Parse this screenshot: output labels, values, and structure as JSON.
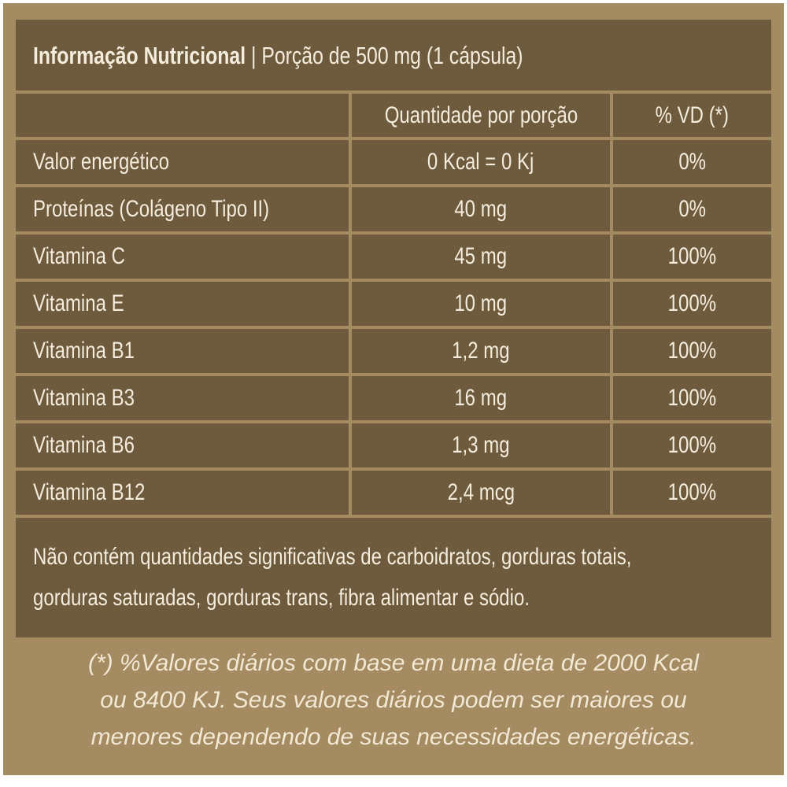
{
  "title": {
    "bold": "Informação Nutricional",
    "separator": " | ",
    "serving": "Porção de 500 mg (1 cápsula)"
  },
  "table": {
    "headers": [
      "",
      "Quantidade por porção",
      "% VD (*)"
    ],
    "rows": [
      [
        "Valor energético",
        "0 Kcal = 0 Kj",
        "0%"
      ],
      [
        "Proteínas (Colágeno Tipo II)",
        "40 mg",
        "0%"
      ],
      [
        "Vitamina C",
        "45 mg",
        "100%"
      ],
      [
        "Vitamina E",
        "10 mg",
        "100%"
      ],
      [
        "Vitamina B1",
        "1,2 mg",
        "100%"
      ],
      [
        "Vitamina B3",
        "16 mg",
        "100%"
      ],
      [
        "Vitamina B6",
        "1,3 mg",
        "100%"
      ],
      [
        "Vitamina B12",
        "2,4 mcg",
        "100%"
      ]
    ]
  },
  "note": [
    "Não contém quantidades significativas de carboidratos, gorduras totais,",
    "gorduras saturadas, gorduras trans, fibra alimentar e sódio."
  ],
  "footer": [
    "(*) %Valores diários com base em uma dieta de 2000 Kcal",
    "ou 8400 KJ. Seus valores diários podem ser maiores ou",
    "menores dependendo de suas necessidades energéticas."
  ],
  "colors": {
    "background": "#a48b62",
    "panel": "#6e5a3d",
    "text": "#f4ecdc"
  }
}
